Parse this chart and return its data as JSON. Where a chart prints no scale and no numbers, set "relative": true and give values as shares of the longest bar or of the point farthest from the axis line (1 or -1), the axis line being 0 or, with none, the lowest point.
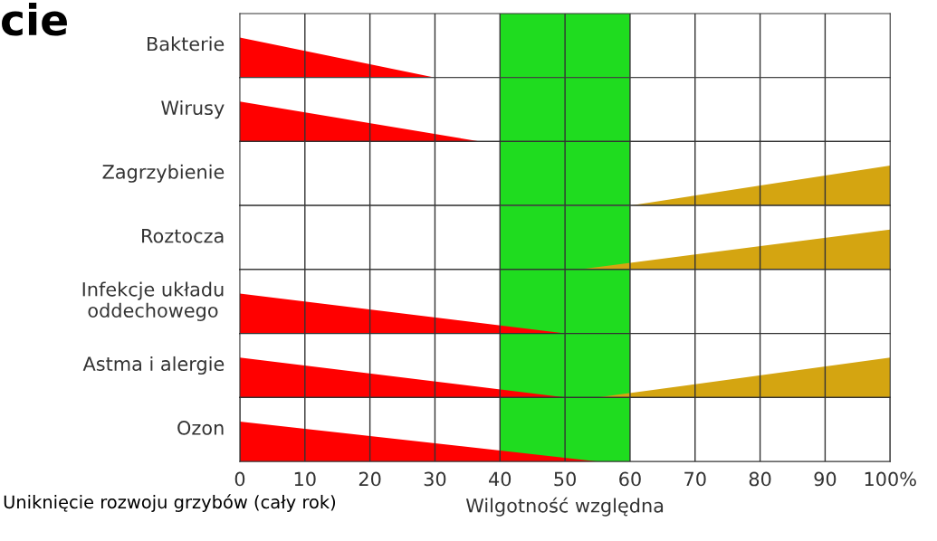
{
  "chart_data": [
    {
      "type": "area",
      "ylabel": "Bakterie",
      "relative": true,
      "xlim": [
        0,
        100
      ],
      "xticks": [
        {
          "value": 10,
          "label": null
        },
        {
          "value": 20,
          "label": null
        },
        {
          "value": 30,
          "label": null
        },
        {
          "value": 40,
          "label": null
        },
        {
          "value": 50,
          "label": null
        },
        {
          "value": 60,
          "label": null
        },
        {
          "value": 70,
          "label": null
        },
        {
          "value": 80,
          "label": null
        },
        {
          "value": 90,
          "label": null
        }
      ],
      "tick_labels": false,
      "grid": "x",
      "annotations": [
        "cie"
      ],
      "bands": [
        {
          "axis": "x",
          "from": 40,
          "to": 60,
          "color": "#1fdc1f"
        }
      ],
      "series": [
        {
          "x": [
            0,
            30
          ],
          "values": [
            1,
            0
          ],
          "color": "#ff0000"
        }
      ]
    },
    {
      "type": "area",
      "ylabel": "Wirusy",
      "relative": true,
      "xlim": [
        0,
        100
      ],
      "xticks": [
        {
          "value": 10,
          "label": null
        },
        {
          "value": 20,
          "label": null
        },
        {
          "value": 30,
          "label": null
        },
        {
          "value": 40,
          "label": null
        },
        {
          "value": 50,
          "label": null
        },
        {
          "value": 60,
          "label": null
        },
        {
          "value": 70,
          "label": null
        },
        {
          "value": 80,
          "label": null
        },
        {
          "value": 90,
          "label": null
        }
      ],
      "tick_labels": false,
      "grid": "x",
      "bands": [
        {
          "axis": "x",
          "from": 40,
          "to": 60,
          "color": "#1fdc1f"
        }
      ],
      "series": [
        {
          "x": [
            0,
            37
          ],
          "values": [
            1,
            0
          ],
          "color": "#ff0000"
        }
      ]
    },
    {
      "type": "area",
      "ylabel": "Zagrzybienie",
      "relative": true,
      "xlim": [
        0,
        100
      ],
      "xticks": [
        {
          "value": 10,
          "label": null
        },
        {
          "value": 20,
          "label": null
        },
        {
          "value": 30,
          "label": null
        },
        {
          "value": 40,
          "label": null
        },
        {
          "value": 50,
          "label": null
        },
        {
          "value": 60,
          "label": null
        },
        {
          "value": 70,
          "label": null
        },
        {
          "value": 80,
          "label": null
        },
        {
          "value": 90,
          "label": null
        }
      ],
      "tick_labels": false,
      "grid": "x",
      "bands": [
        {
          "axis": "x",
          "from": 40,
          "to": 60,
          "color": "#1fdc1f"
        }
      ],
      "series": [
        {
          "x": [
            60,
            100
          ],
          "values": [
            0,
            1
          ],
          "color": "#d4a511"
        }
      ]
    },
    {
      "type": "area",
      "ylabel": "Roztocza",
      "relative": true,
      "xlim": [
        0,
        100
      ],
      "xticks": [
        {
          "value": 10,
          "label": null
        },
        {
          "value": 20,
          "label": null
        },
        {
          "value": 30,
          "label": null
        },
        {
          "value": 40,
          "label": null
        },
        {
          "value": 50,
          "label": null
        },
        {
          "value": 60,
          "label": null
        },
        {
          "value": 70,
          "label": null
        },
        {
          "value": 80,
          "label": null
        },
        {
          "value": 90,
          "label": null
        }
      ],
      "tick_labels": false,
      "grid": "x",
      "bands": [
        {
          "axis": "x",
          "from": 40,
          "to": 60,
          "color": "#1fdc1f"
        }
      ],
      "series": [
        {
          "x": [
            52,
            100
          ],
          "values": [
            0,
            1
          ],
          "color": "#d4a511"
        }
      ]
    },
    {
      "type": "area",
      "ylabel": "Infekcje układu\noddechowego",
      "relative": true,
      "xlim": [
        0,
        100
      ],
      "xticks": [
        {
          "value": 10,
          "label": null
        },
        {
          "value": 20,
          "label": null
        },
        {
          "value": 30,
          "label": null
        },
        {
          "value": 40,
          "label": null
        },
        {
          "value": 50,
          "label": null
        },
        {
          "value": 60,
          "label": null
        },
        {
          "value": 70,
          "label": null
        },
        {
          "value": 80,
          "label": null
        },
        {
          "value": 90,
          "label": null
        }
      ],
      "tick_labels": false,
      "grid": "x",
      "bands": [
        {
          "axis": "x",
          "from": 40,
          "to": 60,
          "color": "#1fdc1f"
        }
      ],
      "series": [
        {
          "x": [
            0,
            50
          ],
          "values": [
            1,
            0
          ],
          "color": "#ff0000"
        }
      ]
    },
    {
      "type": "area",
      "ylabel": "Astma i alergie",
      "relative": true,
      "xlim": [
        0,
        100
      ],
      "xticks": [
        {
          "value": 10,
          "label": null
        },
        {
          "value": 20,
          "label": null
        },
        {
          "value": 30,
          "label": null
        },
        {
          "value": 40,
          "label": null
        },
        {
          "value": 50,
          "label": null
        },
        {
          "value": 60,
          "label": null
        },
        {
          "value": 70,
          "label": null
        },
        {
          "value": 80,
          "label": null
        },
        {
          "value": 90,
          "label": null
        }
      ],
      "tick_labels": false,
      "grid": "x",
      "bands": [
        {
          "axis": "x",
          "from": 40,
          "to": 60,
          "color": "#1fdc1f"
        }
      ],
      "series": [
        {
          "x": [
            0,
            50
          ],
          "values": [
            1,
            0
          ],
          "color": "#ff0000"
        },
        {
          "x": [
            55,
            100
          ],
          "values": [
            0,
            1
          ],
          "color": "#d4a511"
        }
      ]
    },
    {
      "type": "area",
      "ylabel": "Ozon",
      "xlabel": "Wilgotność względna",
      "relative": true,
      "xlim": [
        0,
        100
      ],
      "xticks": [
        0,
        10,
        20,
        30,
        40,
        50,
        60,
        70,
        80,
        90,
        {
          "value": 100,
          "label": "100%"
        }
      ],
      "tick_labels": "x",
      "grid": "x",
      "annotations": [
        "Uniknięcie rozwoju grzybów (cały rok)"
      ],
      "bands": [
        {
          "axis": "x",
          "from": 40,
          "to": 60,
          "color": "#1fdc1f"
        }
      ],
      "series": [
        {
          "x": [
            0,
            55
          ],
          "values": [
            1,
            0
          ],
          "color": "#ff0000"
        }
      ]
    }
  ]
}
